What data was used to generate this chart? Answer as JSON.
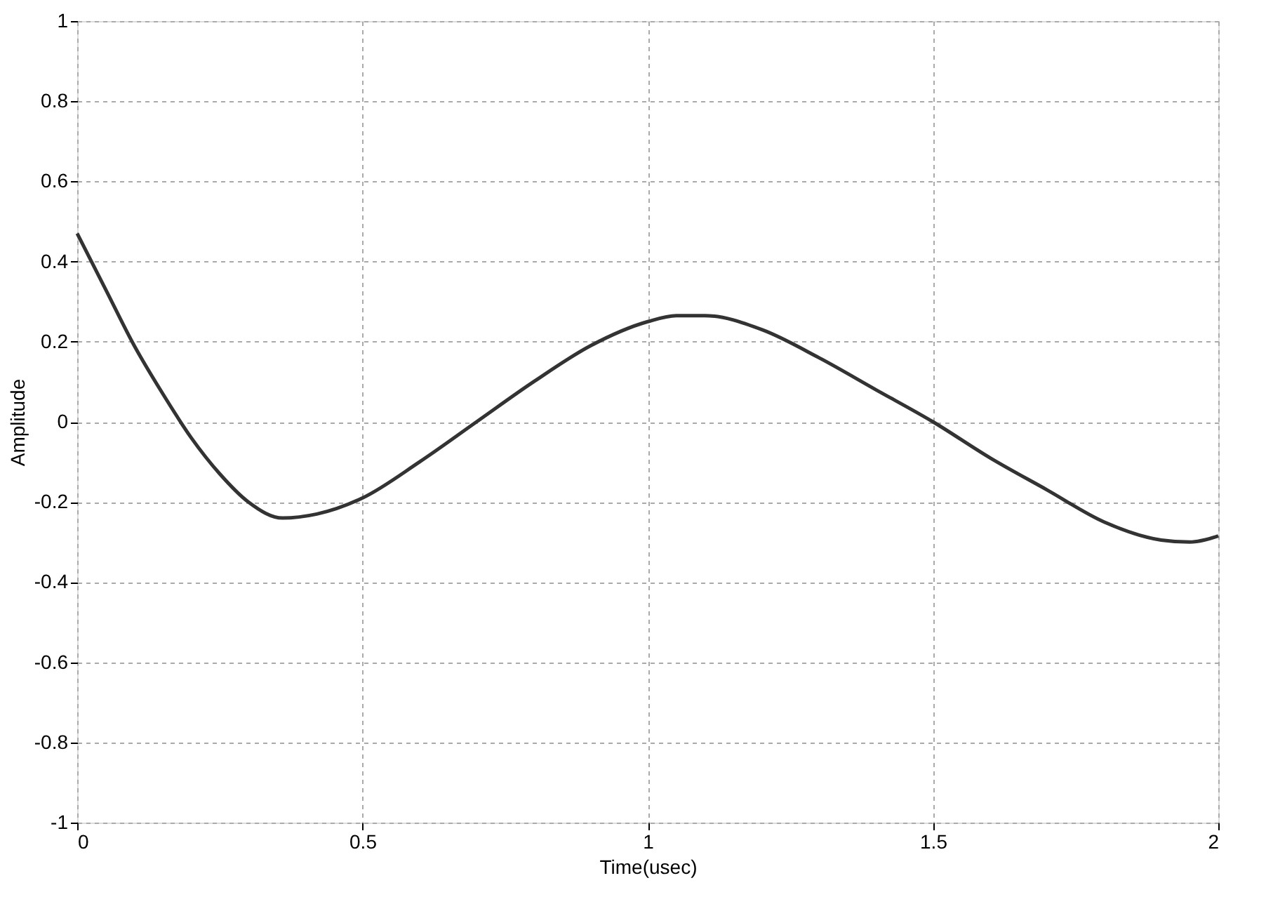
{
  "chart_data": {
    "type": "line",
    "xlabel": "Time(usec)",
    "ylabel": "Amplitude",
    "x": [
      0,
      0.05,
      0.1,
      0.15,
      0.2,
      0.25,
      0.3,
      0.36,
      0.42,
      0.5,
      0.6,
      0.7,
      0.8,
      0.9,
      1.0,
      1.05,
      1.1,
      1.2,
      1.3,
      1.4,
      1.5,
      1.6,
      1.7,
      1.8,
      1.9,
      1.95,
      2.0
    ],
    "series": [
      {
        "color": "#333333",
        "values": [
          0.47,
          0.33,
          0.19,
          0.07,
          -0.04,
          -0.13,
          -0.2,
          -0.24,
          -0.23,
          -0.19,
          -0.1,
          0.0,
          0.1,
          0.19,
          0.25,
          0.265,
          0.265,
          0.23,
          0.16,
          0.08,
          0.0,
          -0.09,
          -0.17,
          -0.25,
          -0.295,
          -0.3,
          -0.285
        ]
      }
    ],
    "xlim": [
      0,
      2
    ],
    "xticks": [
      0,
      0.5,
      1,
      1.5,
      2
    ],
    "ylim": [
      -1,
      1
    ],
    "yticks": [
      -1,
      -0.8,
      -0.6,
      -0.4,
      -0.2,
      0,
      0.2,
      0.4,
      0.6,
      0.8,
      1
    ],
    "grid": true,
    "line_style": "solid",
    "marker": "none"
  }
}
